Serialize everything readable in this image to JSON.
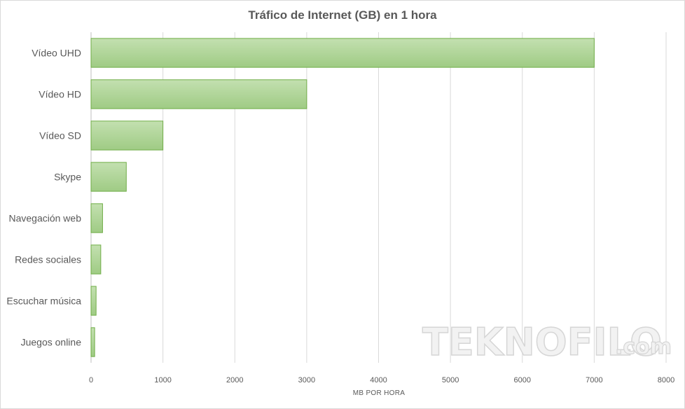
{
  "chart_data": {
    "type": "bar",
    "orientation": "horizontal",
    "title": "Tráfico de Internet (GB) en 1 hora",
    "xlabel": "MB POR HORA",
    "ylabel": "",
    "categories": [
      "Vídeo UHD",
      "Vídeo HD",
      "Vídeo SD",
      "Skype",
      "Navegación web",
      "Redes sociales",
      "Escuchar música",
      "Juegos online"
    ],
    "values": [
      7000,
      3000,
      1000,
      490,
      160,
      135,
      70,
      50
    ],
    "xlim": [
      0,
      8000
    ],
    "xticks": [
      0,
      1000,
      2000,
      3000,
      4000,
      5000,
      6000,
      7000,
      8000
    ],
    "grid": true,
    "bar_color": "#a9d18e",
    "bar_border": "#70ad47"
  },
  "watermark": {
    "main": "TEKNOFILO",
    "suffix": ".com"
  }
}
